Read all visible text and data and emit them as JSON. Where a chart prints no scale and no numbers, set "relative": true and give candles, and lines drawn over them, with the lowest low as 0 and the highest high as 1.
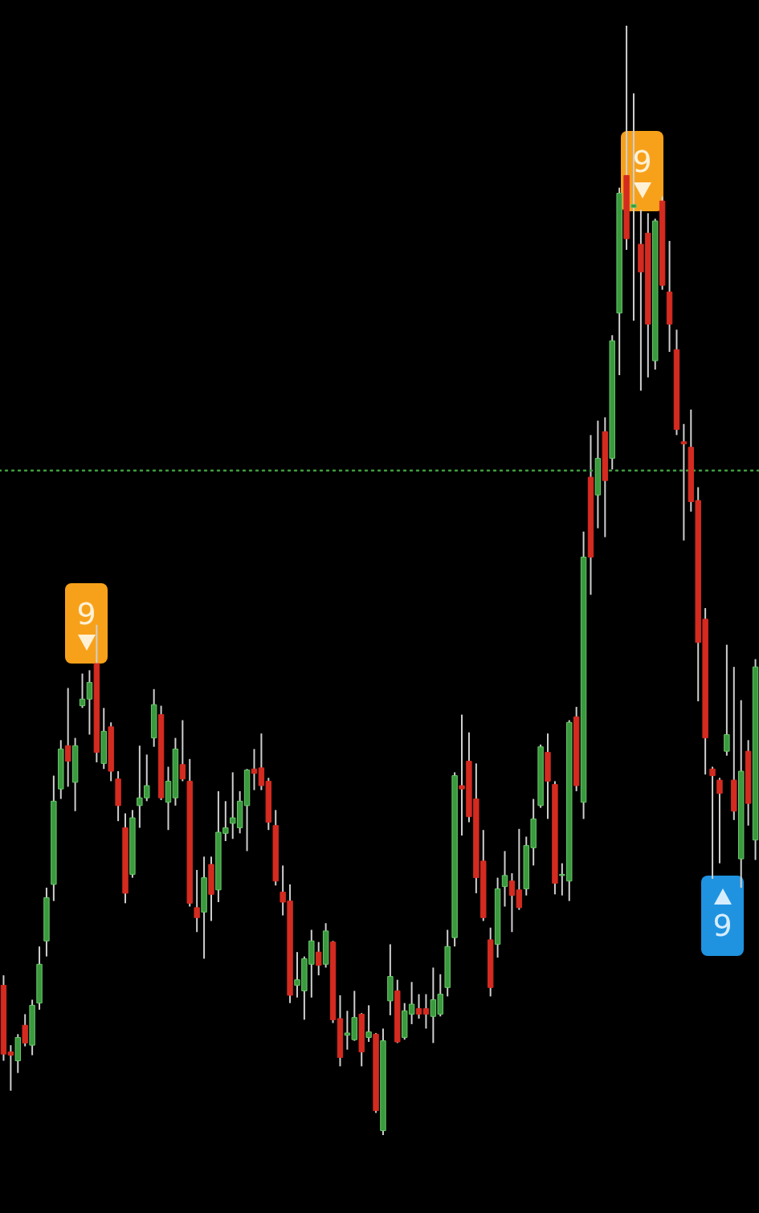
{
  "chart_data": {
    "type": "candlestick",
    "relative": true,
    "categories": [
      null,
      null,
      null,
      null,
      null,
      null,
      null,
      null,
      null,
      null,
      null,
      null,
      null,
      null,
      null,
      null,
      null,
      null,
      null,
      null,
      null,
      null,
      null,
      null,
      null,
      null,
      null,
      null,
      null,
      null,
      null,
      null,
      null,
      null,
      null,
      null,
      null,
      null,
      null,
      null,
      null,
      null,
      null,
      null,
      null,
      null,
      null,
      null,
      null,
      null,
      null,
      null,
      null,
      null,
      null,
      null,
      null,
      null,
      null,
      null,
      null,
      null,
      null,
      null,
      null,
      null,
      null,
      null,
      null,
      null,
      null,
      null,
      null,
      null,
      null,
      null,
      null,
      null,
      null,
      null,
      null,
      null,
      null,
      null,
      null,
      null,
      null,
      null,
      null,
      null,
      null,
      null,
      null,
      null,
      null,
      null,
      null,
      null,
      null,
      null,
      null,
      null,
      null,
      null,
      null,
      null
    ],
    "ohlc": [
      [
        0.135,
        0.144,
        0.067,
        0.073
      ],
      [
        0.075,
        0.081,
        0.04,
        0.072
      ],
      [
        0.067,
        0.091,
        0.056,
        0.088
      ],
      [
        0.099,
        0.109,
        0.08,
        0.083
      ],
      [
        0.081,
        0.122,
        0.072,
        0.117
      ],
      [
        0.119,
        0.17,
        0.113,
        0.154
      ],
      [
        0.175,
        0.223,
        0.161,
        0.214
      ],
      [
        0.226,
        0.324,
        0.211,
        0.301
      ],
      [
        0.312,
        0.356,
        0.303,
        0.348
      ],
      [
        0.351,
        0.403,
        0.314,
        0.337
      ],
      [
        0.318,
        0.358,
        0.292,
        0.351
      ],
      [
        0.387,
        0.416,
        0.385,
        0.393
      ],
      [
        0.393,
        0.419,
        0.361,
        0.408
      ],
      [
        0.425,
        0.46,
        0.336,
        0.345
      ],
      [
        0.335,
        0.385,
        0.33,
        0.364
      ],
      [
        0.368,
        0.372,
        0.319,
        0.328
      ],
      [
        0.321,
        0.328,
        0.283,
        0.297
      ],
      [
        0.277,
        0.29,
        0.209,
        0.218
      ],
      [
        0.235,
        0.293,
        0.232,
        0.286
      ],
      [
        0.297,
        0.351,
        0.277,
        0.304
      ],
      [
        0.304,
        0.343,
        0.301,
        0.315
      ],
      [
        0.358,
        0.402,
        0.35,
        0.388
      ],
      [
        0.379,
        0.387,
        0.302,
        0.304
      ],
      [
        0.3,
        0.332,
        0.275,
        0.319
      ],
      [
        0.304,
        0.358,
        0.297,
        0.348
      ],
      [
        0.334,
        0.374,
        0.319,
        0.321
      ],
      [
        0.319,
        0.339,
        0.206,
        0.209
      ],
      [
        0.205,
        0.239,
        0.183,
        0.196
      ],
      [
        0.201,
        0.251,
        0.159,
        0.232
      ],
      [
        0.244,
        0.251,
        0.193,
        0.217
      ],
      [
        0.221,
        0.31,
        0.21,
        0.273
      ],
      [
        0.272,
        0.301,
        0.265,
        0.277
      ],
      [
        0.281,
        0.327,
        0.267,
        0.286
      ],
      [
        0.277,
        0.31,
        0.272,
        0.301
      ],
      [
        0.297,
        0.33,
        0.256,
        0.329
      ],
      [
        0.33,
        0.348,
        0.311,
        0.326
      ],
      [
        0.331,
        0.362,
        0.311,
        0.315
      ],
      [
        0.319,
        0.322,
        0.275,
        0.282
      ],
      [
        0.279,
        0.293,
        0.225,
        0.229
      ],
      [
        0.219,
        0.243,
        0.198,
        0.21
      ],
      [
        0.211,
        0.226,
        0.119,
        0.126
      ],
      [
        0.135,
        0.165,
        0.124,
        0.14
      ],
      [
        0.13,
        0.161,
        0.104,
        0.159
      ],
      [
        0.154,
        0.185,
        0.124,
        0.175
      ],
      [
        0.165,
        0.174,
        0.144,
        0.153
      ],
      [
        0.154,
        0.191,
        0.151,
        0.184
      ],
      [
        0.174,
        0.175,
        0.101,
        0.104
      ],
      [
        0.105,
        0.126,
        0.062,
        0.07
      ],
      [
        0.09,
        0.112,
        0.077,
        0.092
      ],
      [
        0.086,
        0.13,
        0.085,
        0.106
      ],
      [
        0.109,
        0.11,
        0.062,
        0.075
      ],
      [
        0.088,
        0.117,
        0.084,
        0.093
      ],
      [
        0.091,
        0.092,
        0.02,
        0.022
      ],
      [
        0.004,
        0.096,
        0,
        0.085
      ],
      [
        0.121,
        0.172,
        0.108,
        0.143
      ],
      [
        0.13,
        0.14,
        0.083,
        0.084
      ],
      [
        0.088,
        0.119,
        0.086,
        0.112
      ],
      [
        0.109,
        0.138,
        0.1,
        0.118
      ],
      [
        0.114,
        0.127,
        0.105,
        0.109
      ],
      [
        0.114,
        0.127,
        0.096,
        0.109
      ],
      [
        0.107,
        0.151,
        0.083,
        0.122
      ],
      [
        0.109,
        0.145,
        0.107,
        0.127
      ],
      [
        0.133,
        0.185,
        0.125,
        0.17
      ],
      [
        0.178,
        0.327,
        0.17,
        0.324
      ],
      [
        0.315,
        0.379,
        0.27,
        0.312
      ],
      [
        0.337,
        0.363,
        0.282,
        0.287
      ],
      [
        0.303,
        0.335,
        0.218,
        0.232
      ],
      [
        0.247,
        0.275,
        0.193,
        0.196
      ],
      [
        0.176,
        0.187,
        0.125,
        0.133
      ],
      [
        0.172,
        0.232,
        0.16,
        0.222
      ],
      [
        0.224,
        0.256,
        0.206,
        0.234
      ],
      [
        0.229,
        0.236,
        0.183,
        0.216
      ],
      [
        0.221,
        0.276,
        0.203,
        0.205
      ],
      [
        0.222,
        0.269,
        0.216,
        0.261
      ],
      [
        0.259,
        0.303,
        0.243,
        0.285
      ],
      [
        0.297,
        0.352,
        0.295,
        0.35
      ],
      [
        0.345,
        0.362,
        0.285,
        0.319
      ],
      [
        0.316,
        0.319,
        0.217,
        0.227
      ],
      [
        0.234,
        0.245,
        0.216,
        0.235
      ],
      [
        0.229,
        0.374,
        0.211,
        0.372
      ],
      [
        0.377,
        0.386,
        0.31,
        0.315
      ],
      [
        0.3,
        0.544,
        0.285,
        0.521
      ],
      [
        0.593,
        0.631,
        0.487,
        0.521
      ],
      [
        0.577,
        0.644,
        0.547,
        0.61
      ],
      [
        0.634,
        0.647,
        0.539,
        0.59
      ],
      [
        0.61,
        0.721,
        0.6,
        0.716
      ],
      [
        0.741,
        0.854,
        0.685,
        0.849
      ],
      [
        0.865,
        1,
        0.798,
        0.808
      ],
      [
        0.836,
        0.939,
        0.734,
        0.839
      ],
      [
        0.803,
        0.834,
        0.671,
        0.778
      ],
      [
        0.813,
        0.831,
        0.683,
        0.731
      ],
      [
        0.698,
        0.826,
        0.69,
        0.824
      ],
      [
        0.842,
        0.846,
        0.762,
        0.766
      ],
      [
        0.76,
        0.806,
        0.706,
        0.731
      ],
      [
        0.708,
        0.726,
        0.631,
        0.636
      ],
      [
        0.625,
        0.641,
        0.536,
        0.623
      ],
      [
        0.62,
        0.654,
        0.562,
        0.571
      ],
      [
        0.572,
        0.584,
        0.391,
        0.444
      ],
      [
        0.465,
        0.475,
        0.325,
        0.358
      ],
      [
        0.33,
        0.332,
        0.231,
        0.324
      ],
      [
        0.32,
        0.322,
        0.245,
        0.308
      ],
      [
        0.346,
        0.442,
        0.342,
        0.361
      ],
      [
        0.32,
        0.422,
        0.284,
        0.292
      ],
      [
        0.249,
        0.392,
        0.223,
        0.328
      ],
      [
        0.346,
        0.356,
        0.279,
        0.299
      ],
      [
        0.266,
        0.429,
        0.248,
        0.422
      ]
    ],
    "ref_lines": [
      {
        "axis": "y",
        "value": 0.599,
        "color": "#3f9f3f",
        "line_style": "dotted"
      }
    ],
    "annotations": [
      "9",
      "9",
      "9"
    ]
  }
}
